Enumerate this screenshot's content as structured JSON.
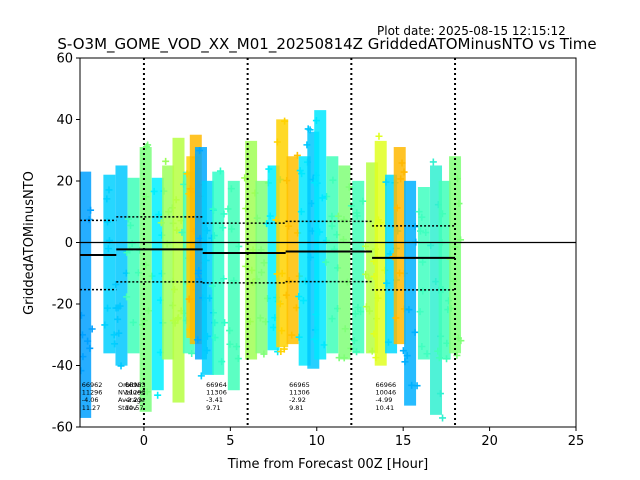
{
  "plot_date": "Plot date: 2025-08-15 12:15:12",
  "chart_data": {
    "type": "scatter",
    "title": "S-O3M_GOME_VOD_XX_M01_20250814Z GriddedATOMinusNTO vs Time",
    "xlabel": "Time from Forecast 00Z [Hour]",
    "ylabel": "GriddedATOMinusNTO",
    "xlim": [
      -3.7,
      25
    ],
    "ylim": [
      -60,
      60
    ],
    "xticks": [
      0,
      5,
      10,
      15,
      20,
      25
    ],
    "yticks": [
      -60,
      -40,
      -20,
      0,
      20,
      40,
      60
    ],
    "marker": "+",
    "grid": false,
    "vertical_dotted_lines_x": [
      0,
      6,
      12,
      18
    ],
    "zero_line_y": 0,
    "clusters": [
      {
        "x": -3.4,
        "ymin": -59,
        "ymax": 25,
        "color": "#00a0ff"
      },
      {
        "x": -2.0,
        "ymin": -38,
        "ymax": 24,
        "color": "#00d0ff"
      },
      {
        "x": -1.3,
        "ymin": -42,
        "ymax": 27,
        "color": "#00c8ff"
      },
      {
        "x": -0.6,
        "ymin": -38,
        "ymax": 23,
        "color": "#40ffb8"
      },
      {
        "x": 0.1,
        "ymin": -57,
        "ymax": 33,
        "color": "#7aff7c"
      },
      {
        "x": 0.8,
        "ymin": -50,
        "ymax": 23,
        "color": "#00f0ff"
      },
      {
        "x": 1.4,
        "ymin": -40,
        "ymax": 27,
        "color": "#9cff5a"
      },
      {
        "x": 2.0,
        "ymin": -54,
        "ymax": 36,
        "color": "#b6ff42"
      },
      {
        "x": 2.6,
        "ymin": -38,
        "ymax": 25,
        "color": "#40ffb8"
      },
      {
        "x": 2.8,
        "ymin": -33,
        "ymax": 30,
        "color": "#ffd000"
      },
      {
        "x": 3.0,
        "ymin": -35,
        "ymax": 37,
        "color": "#ffb800"
      },
      {
        "x": 3.3,
        "ymin": -40,
        "ymax": 33,
        "color": "#00a8ff"
      },
      {
        "x": 3.7,
        "ymin": -45,
        "ymax": 22,
        "color": "#00d0ff"
      },
      {
        "x": 4.3,
        "ymin": -45,
        "ymax": 25,
        "color": "#30ffc8"
      },
      {
        "x": 5.2,
        "ymin": -50,
        "ymax": 22,
        "color": "#40ffb8"
      },
      {
        "x": 6.2,
        "ymin": -40,
        "ymax": 35,
        "color": "#a0ff55"
      },
      {
        "x": 6.8,
        "ymin": -38,
        "ymax": 22,
        "color": "#80ff78"
      },
      {
        "x": 7.5,
        "ymin": -37,
        "ymax": 27,
        "color": "#00f0ff"
      },
      {
        "x": 8.0,
        "ymin": -36,
        "ymax": 42,
        "color": "#ffd200"
      },
      {
        "x": 8.6,
        "ymin": -35,
        "ymax": 30,
        "color": "#ffc000"
      },
      {
        "x": 9.3,
        "ymin": -42,
        "ymax": 30,
        "color": "#00e8ff"
      },
      {
        "x": 9.8,
        "ymin": -43,
        "ymax": 38,
        "color": "#00c8ff"
      },
      {
        "x": 10.2,
        "ymin": -40,
        "ymax": 45,
        "color": "#00e8ff"
      },
      {
        "x": 10.9,
        "ymin": -38,
        "ymax": 30,
        "color": "#40ffb8"
      },
      {
        "x": 11.6,
        "ymin": -40,
        "ymax": 27,
        "color": "#80ff78"
      },
      {
        "x": 12.4,
        "ymin": -38,
        "ymax": 22,
        "color": "#40ffb8"
      },
      {
        "x": 13.2,
        "ymin": -38,
        "ymax": 28,
        "color": "#b6ff42"
      },
      {
        "x": 13.7,
        "ymin": -42,
        "ymax": 35,
        "color": "#e0ff20"
      },
      {
        "x": 14.3,
        "ymin": -38,
        "ymax": 24,
        "color": "#00d8ff"
      },
      {
        "x": 14.8,
        "ymin": -35,
        "ymax": 33,
        "color": "#ffb800"
      },
      {
        "x": 15.4,
        "ymin": -55,
        "ymax": 22,
        "color": "#00b0ff"
      },
      {
        "x": 16.2,
        "ymin": -40,
        "ymax": 20,
        "color": "#40ffc0"
      },
      {
        "x": 16.9,
        "ymin": -58,
        "ymax": 27,
        "color": "#30f0d0"
      },
      {
        "x": 17.4,
        "ymin": -40,
        "ymax": 22,
        "color": "#40ffb8"
      },
      {
        "x": 18.0,
        "ymin": -38,
        "ymax": 30,
        "color": "#80ff78"
      }
    ],
    "mean_line": [
      {
        "x0": -3.7,
        "x1": -1.6,
        "y": -4.06
      },
      {
        "x0": -1.6,
        "x1": 3.4,
        "y": -2.23
      },
      {
        "x0": 3.4,
        "x1": 8.2,
        "y": -3.41
      },
      {
        "x0": 8.2,
        "x1": 13.2,
        "y": -2.92
      },
      {
        "x0": 13.2,
        "x1": 18.0,
        "y": -4.99
      }
    ],
    "stdev_lines": [
      {
        "x0": -3.7,
        "x1": -1.6,
        "upper": 7.21,
        "lower": -15.33
      },
      {
        "x0": -1.6,
        "x1": 3.4,
        "upper": 8.34,
        "lower": -12.8
      },
      {
        "x0": 3.4,
        "x1": 8.2,
        "upper": 6.3,
        "lower": -13.12
      },
      {
        "x0": 8.2,
        "x1": 13.2,
        "upper": 6.89,
        "lower": -12.73
      },
      {
        "x0": 13.2,
        "x1": 18.0,
        "upper": 5.42,
        "lower": -15.4
      }
    ],
    "stats_header": [
      "OrbitNr",
      "NValues",
      "Average",
      "Stdev"
    ],
    "stats": [
      {
        "x": -3.6,
        "orbit": "66962",
        "nvalues": "11296",
        "average": "-4.06",
        "stdev": "11.27"
      },
      {
        "x": -1.1,
        "orbit": "66963",
        "nvalues": "11293",
        "average": "-2.23",
        "stdev": "10.57"
      },
      {
        "x": 3.6,
        "orbit": "66964",
        "nvalues": "11306",
        "average": "-3.41",
        "stdev": "9.71"
      },
      {
        "x": 8.4,
        "orbit": "66965",
        "nvalues": "11306",
        "average": "-2.92",
        "stdev": "9.81"
      },
      {
        "x": 13.4,
        "orbit": "66966",
        "nvalues": "10046",
        "average": "-4.99",
        "stdev": "10.41"
      }
    ]
  }
}
